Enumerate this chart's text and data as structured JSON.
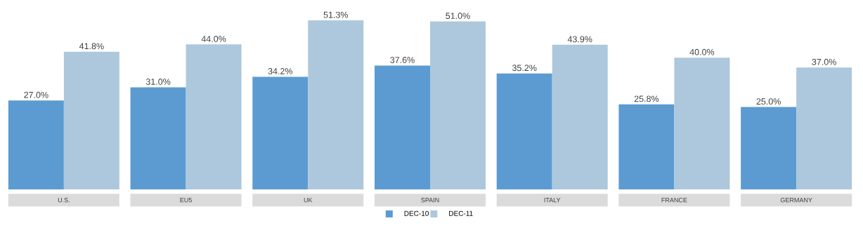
{
  "chart_data": {
    "type": "bar",
    "categories": [
      "U.S.",
      "EU5",
      "UK",
      "SPAIN",
      "ITALY",
      "FRANCE",
      "GERMANY"
    ],
    "series": [
      {
        "name": "DEC-10",
        "color": "#5b9bd2",
        "values": [
          27.0,
          31.0,
          34.2,
          37.6,
          35.2,
          25.8,
          25.0
        ],
        "value_labels": [
          "27.0%",
          "31.0%",
          "34.2%",
          "37.6%",
          "35.2%",
          "25.8%",
          "25.0%"
        ]
      },
      {
        "name": "DEC-11",
        "color": "#adc8dc",
        "values": [
          41.8,
          44.0,
          51.3,
          51.0,
          43.9,
          40.0,
          37.0
        ],
        "value_labels": [
          "41.8%",
          "44.0%",
          "51.3%",
          "51.0%",
          "43.9%",
          "40.0%",
          "37.0%"
        ]
      }
    ],
    "legend": "bottom"
  }
}
